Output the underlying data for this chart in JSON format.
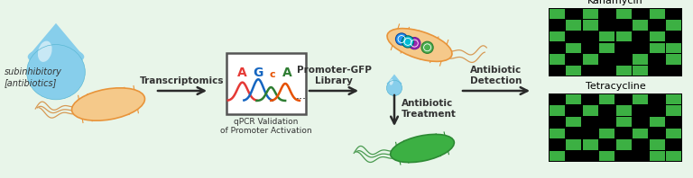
{
  "fig_width": 7.68,
  "fig_height": 1.98,
  "colors": {
    "background": "#e8f5e9",
    "water_blue_light": "#add8e6",
    "water_blue_mid": "#87ceeb",
    "water_blue_dark": "#5bb8d4",
    "bacteria_orange_fill": "#f5c98a",
    "bacteria_orange_edge": "#e8943a",
    "bacteria_green_fill": "#3cb043",
    "bacteria_green_edge": "#2d8a34",
    "flagella_orange": "#d4893a",
    "flagella_green": "#2d8a34",
    "arrow_color": "#2a2a2a",
    "box_border": "#555555",
    "text_dark": "#333333",
    "dna_A_red": "#e53935",
    "dna_G_blue": "#1565c0",
    "dna_c_orange": "#e65100",
    "dna_A2_green": "#2e7d32",
    "grid_green": "#3cb043",
    "grid_black": "#000000",
    "gfp_blue": "#29b6f6",
    "gfp_purple": "#7b1fa2",
    "gfp_green": "#388e3c",
    "gfp_teal": "#00838f"
  },
  "labels": {
    "subinhibitory": "subinhibitory\n[antibiotics]",
    "transcriptomics": "Transcriptomics",
    "qpcr_line1": "qPCR Validation",
    "qpcr_line2": "of Promoter Activation",
    "promoter_gfp": "Promoter-GFP\nLibrary",
    "antibiotic_treatment": "Antibiotic\nTreatment",
    "antibiotic_detection": "Antibiotic\nDetection",
    "kanamycin": "Kanamycin",
    "tetracycline": "Tetracycline"
  },
  "kanamycin_grid": [
    [
      1,
      0,
      1,
      0,
      1,
      0,
      1,
      0
    ],
    [
      0,
      1,
      1,
      0,
      0,
      1,
      0,
      1
    ],
    [
      1,
      0,
      0,
      1,
      1,
      0,
      1,
      0
    ],
    [
      0,
      1,
      0,
      1,
      0,
      0,
      1,
      1
    ],
    [
      1,
      0,
      1,
      0,
      0,
      1,
      0,
      1
    ],
    [
      0,
      1,
      0,
      0,
      1,
      1,
      0,
      0
    ]
  ],
  "tetracycline_grid": [
    [
      0,
      1,
      0,
      1,
      0,
      1,
      0,
      1
    ],
    [
      1,
      0,
      1,
      0,
      1,
      0,
      0,
      1
    ],
    [
      0,
      1,
      0,
      0,
      1,
      0,
      1,
      0
    ],
    [
      1,
      0,
      0,
      1,
      0,
      1,
      0,
      1
    ],
    [
      0,
      1,
      1,
      0,
      1,
      0,
      1,
      0
    ],
    [
      1,
      0,
      0,
      1,
      0,
      0,
      1,
      1
    ]
  ]
}
